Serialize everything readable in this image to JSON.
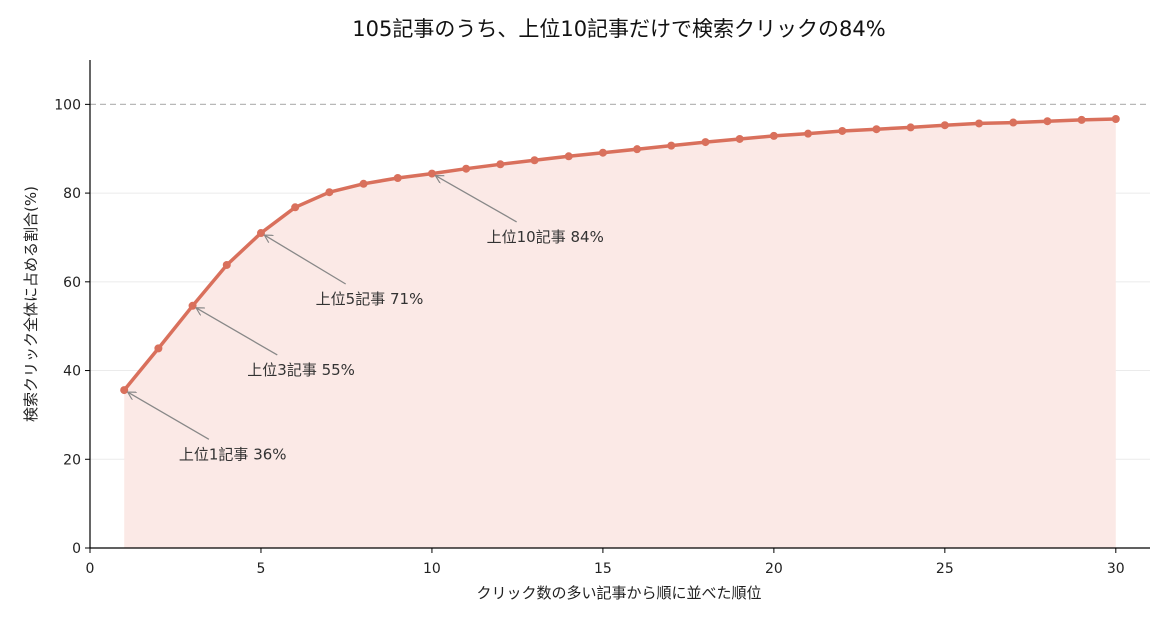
{
  "chart_data": {
    "type": "line",
    "title": "105記事のうち、上位10記事だけで検索クリックの84%",
    "xlabel": "クリック数の多い記事から順に並べた順位",
    "ylabel": "検索クリック全体に占める割合(%)",
    "xlim": [
      0,
      31
    ],
    "ylim": [
      0,
      110
    ],
    "xticks": [
      0,
      5,
      10,
      15,
      20,
      25,
      30
    ],
    "yticks": [
      0,
      20,
      40,
      60,
      80,
      100
    ],
    "grid": "horizontal",
    "reference_line": 100,
    "area_fill": true,
    "colors": {
      "line": "#d9705c",
      "fill": "#fbe9e6",
      "reference": "#b8b8b8",
      "grid": "#ebebeb",
      "axis": "#000000",
      "arrow": "#888888"
    },
    "series": [
      {
        "x": [
          1,
          2,
          3,
          4,
          5,
          6,
          7,
          8,
          9,
          10,
          11,
          12,
          13,
          14,
          15,
          16,
          17,
          18,
          19,
          20,
          21,
          22,
          23,
          24,
          25,
          26,
          27,
          28,
          29,
          30
        ],
        "values": [
          35.6,
          45.0,
          54.6,
          63.8,
          71.0,
          76.8,
          80.2,
          82.1,
          83.4,
          84.4,
          85.5,
          86.5,
          87.4,
          88.3,
          89.1,
          89.9,
          90.7,
          91.5,
          92.2,
          92.9,
          93.4,
          94.0,
          94.4,
          94.8,
          95.3,
          95.7,
          95.9,
          96.2,
          96.5,
          96.7
        ]
      }
    ],
    "annotations": [
      {
        "text": "上位1記事 36%",
        "x": 1,
        "y": 35.6,
        "text_x": 2.6,
        "text_y": 20
      },
      {
        "text": "上位3記事 55%",
        "x": 3,
        "y": 54.6,
        "text_x": 4.6,
        "text_y": 39
      },
      {
        "text": "上位5記事 71%",
        "x": 5,
        "y": 71.0,
        "text_x": 6.6,
        "text_y": 55
      },
      {
        "text": "上位10記事 84%",
        "x": 10,
        "y": 84.4,
        "text_x": 11.6,
        "text_y": 69
      }
    ]
  }
}
